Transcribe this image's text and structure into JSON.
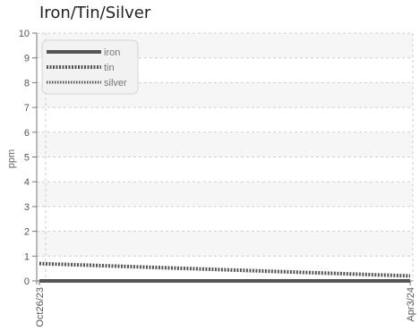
{
  "chart_data": {
    "type": "line",
    "title": "Iron/Tin/Silver",
    "xlabel": "",
    "ylabel": "ppm",
    "x": [
      "Oct26/23",
      "Apr3/24"
    ],
    "xtick_labels": [
      "Oct26/23",
      "Apr3/24"
    ],
    "ylim": [
      0,
      10
    ],
    "yticks": [
      0,
      1,
      2,
      3,
      4,
      5,
      6,
      7,
      8,
      9,
      10
    ],
    "grid": true,
    "legend_position": "top-left",
    "series": [
      {
        "name": "iron",
        "values": [
          0,
          0
        ],
        "color": "#555555",
        "style": "solid"
      },
      {
        "name": "tin",
        "values": [
          0.7,
          0.2
        ],
        "color": "#555555",
        "style": "dotted-thick"
      },
      {
        "name": "silver",
        "values": [
          0,
          0
        ],
        "color": "#555555",
        "style": "dotted-thin"
      }
    ]
  }
}
